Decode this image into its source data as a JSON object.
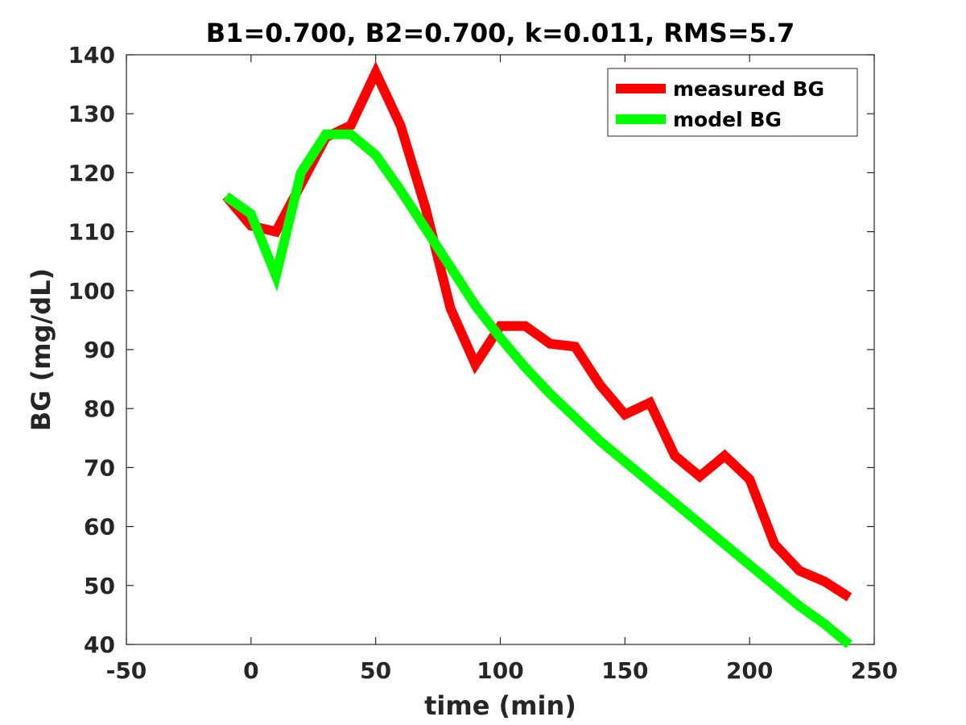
{
  "chart_data": {
    "type": "line",
    "title": "B1=0.700, B2=0.700, k=0.011, RMS=5.7",
    "xlabel": "time (min)",
    "ylabel": "BG (mg/dL)",
    "xlim": [
      -50,
      250
    ],
    "ylim": [
      40,
      140
    ],
    "xticks": [
      -50,
      0,
      50,
      100,
      150,
      200,
      250
    ],
    "yticks": [
      40,
      50,
      60,
      70,
      80,
      90,
      100,
      110,
      120,
      130,
      140
    ],
    "grid": false,
    "legend_position": "top-right",
    "series": [
      {
        "name": "measured BG",
        "color": "#ff0000",
        "x": [
          -10,
          0,
          10,
          20,
          30,
          40,
          50,
          60,
          70,
          80,
          90,
          100,
          110,
          120,
          130,
          140,
          150,
          160,
          170,
          180,
          190,
          200,
          210,
          220,
          230,
          240
        ],
        "y": [
          116,
          111,
          110,
          118,
          126,
          128,
          137,
          128,
          114,
          97,
          87.5,
          94,
          94,
          91,
          90.5,
          84,
          79,
          81,
          72,
          68.5,
          72,
          68,
          57,
          52.5,
          50.7,
          48
        ]
      },
      {
        "name": "model BG",
        "color": "#00ff00",
        "x": [
          -10,
          0,
          10,
          20,
          30,
          40,
          50,
          60,
          70,
          80,
          90,
          100,
          110,
          120,
          130,
          140,
          150,
          160,
          170,
          180,
          190,
          200,
          210,
          220,
          230,
          240
        ],
        "y": [
          116,
          113,
          102.5,
          120,
          126.5,
          126.5,
          123,
          117,
          110.5,
          104,
          97.5,
          92,
          87,
          82.5,
          78.5,
          74.5,
          71,
          67.5,
          64,
          60.5,
          57,
          53.5,
          50,
          46.5,
          43.5,
          40
        ]
      }
    ]
  }
}
